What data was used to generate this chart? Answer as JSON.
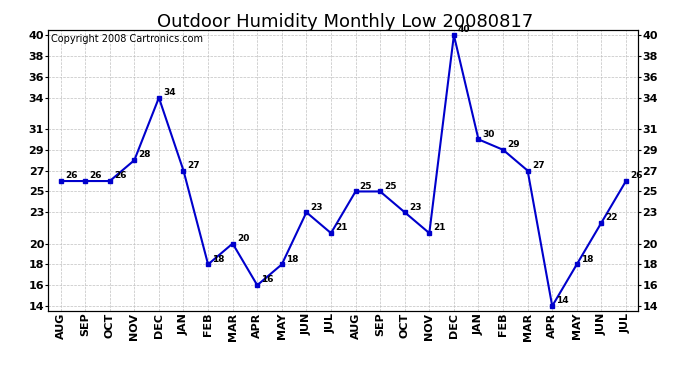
{
  "title": "Outdoor Humidity Monthly Low 20080817",
  "copyright_text": "Copyright 2008 Cartronics.com",
  "months": [
    "AUG",
    "SEP",
    "OCT",
    "NOV",
    "DEC",
    "JAN",
    "FEB",
    "MAR",
    "APR",
    "MAY",
    "JUN",
    "JUL",
    "AUG",
    "SEP",
    "OCT",
    "NOV",
    "DEC",
    "JAN",
    "FEB",
    "MAR",
    "APR",
    "MAY",
    "JUN",
    "JUL"
  ],
  "values": [
    26,
    26,
    26,
    28,
    34,
    27,
    18,
    20,
    16,
    18,
    23,
    21,
    25,
    25,
    23,
    21,
    40,
    30,
    29,
    27,
    14,
    18,
    22,
    26
  ],
  "line_color": "#0000cc",
  "marker_color": "#0000cc",
  "bg_color": "#ffffff",
  "grid_color": "#c0c0c0",
  "ylim_min": 14,
  "ylim_max": 40,
  "yticks": [
    40,
    38,
    36,
    34,
    31,
    29,
    27,
    25,
    23,
    20,
    18,
    16,
    14
  ],
  "title_fontsize": 13,
  "label_fontsize": 8,
  "copyright_fontsize": 7
}
